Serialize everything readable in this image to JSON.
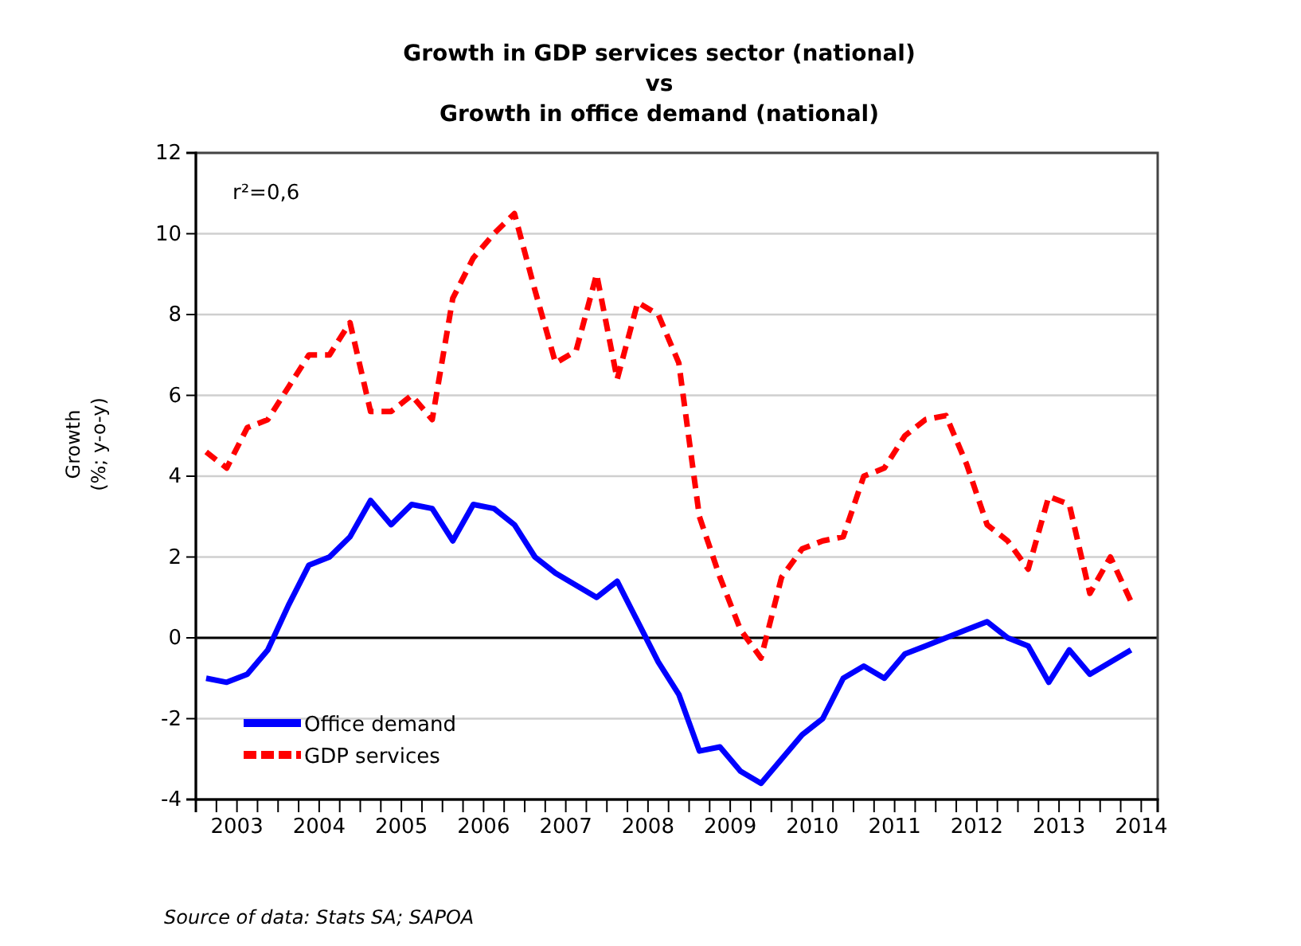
{
  "chart_data": {
    "type": "line",
    "title": "Growth in GDP services sector (national)\nvs\nGrowth in office demand (national)",
    "ylabel": "Growth\n(%; y-o-y)",
    "annotations": [
      "r²=0,6",
      "Source of data: Stats SA; SAPOA"
    ],
    "x": [
      2003.125,
      2003.375,
      2003.625,
      2003.875,
      2004.125,
      2004.375,
      2004.625,
      2004.875,
      2005.125,
      2005.375,
      2005.625,
      2005.875,
      2006.125,
      2006.375,
      2006.625,
      2006.875,
      2007.125,
      2007.375,
      2007.625,
      2007.875,
      2008.125,
      2008.375,
      2008.625,
      2008.875,
      2009.125,
      2009.375,
      2009.625,
      2009.875,
      2010.125,
      2010.375,
      2010.625,
      2010.875,
      2011.125,
      2011.375,
      2011.625,
      2011.875,
      2012.125,
      2012.375,
      2012.625,
      2012.875,
      2013.125,
      2013.375,
      2013.625,
      2013.875,
      2014.125,
      2014.375
    ],
    "series": [
      {
        "name": "Office demand",
        "color": "#0000ff",
        "line_style": "solid",
        "values": [
          -1.0,
          -1.1,
          -0.9,
          -0.3,
          0.8,
          1.8,
          2.0,
          2.5,
          3.4,
          2.8,
          3.3,
          3.2,
          2.4,
          3.3,
          3.2,
          2.8,
          2.0,
          1.6,
          1.3,
          1.0,
          1.4,
          0.4,
          -0.6,
          -1.4,
          -2.8,
          -2.7,
          -3.3,
          -3.6,
          -3.0,
          -2.4,
          -2.0,
          -1.0,
          -0.7,
          -1.0,
          -0.4,
          -0.2,
          0.0,
          0.2,
          0.4,
          0.0,
          -0.2,
          -1.1,
          -0.3,
          -0.9,
          -0.6,
          -0.3
        ]
      },
      {
        "name": "GDP services",
        "color": "#ff0000",
        "line_style": "dashed",
        "values": [
          4.6,
          4.2,
          5.2,
          5.4,
          6.2,
          7.0,
          7.0,
          7.8,
          5.6,
          5.6,
          6.0,
          5.4,
          8.4,
          9.4,
          10.0,
          10.5,
          8.6,
          6.8,
          7.1,
          9.0,
          6.4,
          8.3,
          8.0,
          6.8,
          3.0,
          1.5,
          0.2,
          -0.5,
          1.5,
          2.2,
          2.4,
          2.5,
          4.0,
          4.2,
          5.0,
          5.4,
          5.5,
          4.3,
          2.8,
          2.4,
          1.7,
          3.5,
          3.3,
          1.1,
          2.0,
          0.9
        ]
      }
    ],
    "xlim": [
      2003,
      2014.7
    ],
    "xticks": [
      {
        "value": 2003.25,
        "label": null
      },
      {
        "value": 2003.5,
        "label": "2003"
      },
      {
        "value": 2003.75,
        "label": null
      },
      {
        "value": 2004,
        "label": null
      },
      {
        "value": 2004.25,
        "label": null
      },
      {
        "value": 2004.5,
        "label": "2004"
      },
      {
        "value": 2004.75,
        "label": null
      },
      {
        "value": 2005,
        "label": null
      },
      {
        "value": 2005.25,
        "label": null
      },
      {
        "value": 2005.5,
        "label": "2005"
      },
      {
        "value": 2005.75,
        "label": null
      },
      {
        "value": 2006,
        "label": null
      },
      {
        "value": 2006.25,
        "label": null
      },
      {
        "value": 2006.5,
        "label": "2006"
      },
      {
        "value": 2006.75,
        "label": null
      },
      {
        "value": 2007,
        "label": null
      },
      {
        "value": 2007.25,
        "label": null
      },
      {
        "value": 2007.5,
        "label": "2007"
      },
      {
        "value": 2007.75,
        "label": null
      },
      {
        "value": 2008,
        "label": null
      },
      {
        "value": 2008.25,
        "label": null
      },
      {
        "value": 2008.5,
        "label": "2008"
      },
      {
        "value": 2008.75,
        "label": null
      },
      {
        "value": 2009,
        "label": null
      },
      {
        "value": 2009.25,
        "label": null
      },
      {
        "value": 2009.5,
        "label": "2009"
      },
      {
        "value": 2009.75,
        "label": null
      },
      {
        "value": 2010,
        "label": null
      },
      {
        "value": 2010.25,
        "label": null
      },
      {
        "value": 2010.5,
        "label": "2010"
      },
      {
        "value": 2010.75,
        "label": null
      },
      {
        "value": 2011,
        "label": null
      },
      {
        "value": 2011.25,
        "label": null
      },
      {
        "value": 2011.5,
        "label": "2011"
      },
      {
        "value": 2011.75,
        "label": null
      },
      {
        "value": 2012,
        "label": null
      },
      {
        "value": 2012.25,
        "label": null
      },
      {
        "value": 2012.5,
        "label": "2012"
      },
      {
        "value": 2012.75,
        "label": null
      },
      {
        "value": 2013,
        "label": null
      },
      {
        "value": 2013.25,
        "label": null
      },
      {
        "value": 2013.5,
        "label": "2013"
      },
      {
        "value": 2013.75,
        "label": null
      },
      {
        "value": 2014,
        "label": null
      },
      {
        "value": 2014.25,
        "label": null
      },
      {
        "value": 2014.5,
        "label": "2014"
      }
    ],
    "ylim": [
      -4,
      12
    ],
    "yticks": [
      -4,
      -2,
      0,
      2,
      4,
      6,
      8,
      10,
      12
    ],
    "grid": "y",
    "ref_lines": [
      {
        "axis": "y",
        "value": 0,
        "color": "#000000"
      }
    ],
    "legend": "bottom left",
    "marker": "none"
  }
}
